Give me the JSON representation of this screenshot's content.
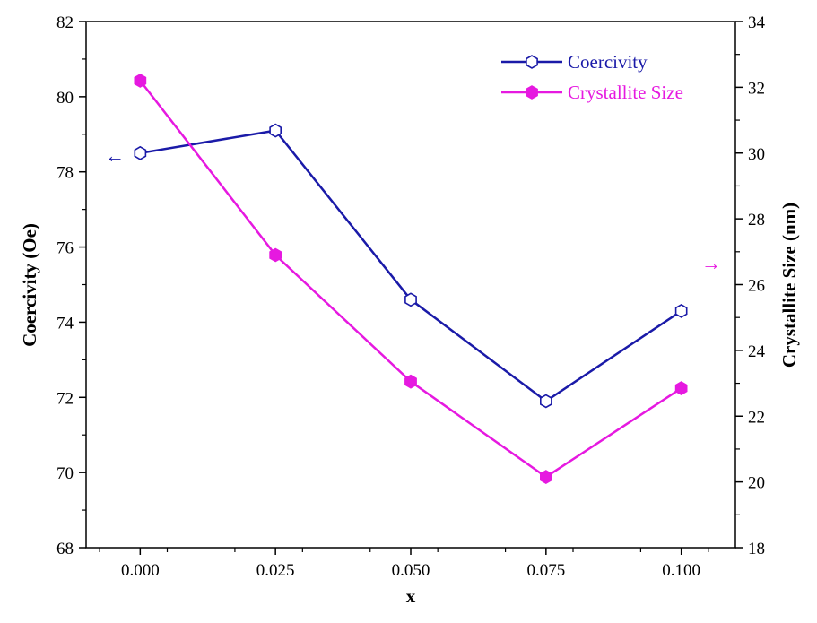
{
  "chart_data": {
    "type": "line",
    "x": [
      0.0,
      0.025,
      0.05,
      0.075,
      0.1
    ],
    "xlabel": "x",
    "xlim": [
      -0.01,
      0.11
    ],
    "x_ticks": [
      "0.000",
      "0.025",
      "0.050",
      "0.075",
      "0.100"
    ],
    "y_left": {
      "label": "Coercivity (Oe)",
      "lim": [
        68,
        82
      ],
      "ticks": [
        "68",
        "70",
        "72",
        "74",
        "76",
        "78",
        "80",
        "82"
      ]
    },
    "y_right": {
      "label": "Crystallite Size (nm)",
      "lim": [
        18,
        34
      ],
      "ticks": [
        "18",
        "20",
        "22",
        "24",
        "26",
        "28",
        "30",
        "32",
        "34"
      ]
    },
    "series": [
      {
        "name": "Coercivity",
        "axis": "left",
        "values": [
          78.5,
          79.1,
          74.6,
          71.9,
          74.3
        ],
        "color": "#1a1aa8",
        "marker": "hexagon-open"
      },
      {
        "name": "Crystallite Size",
        "axis": "right",
        "values": [
          32.2,
          26.9,
          23.05,
          20.15,
          22.85
        ],
        "color": "#e619e0",
        "marker": "hexagon-filled"
      }
    ],
    "legend_position": "top-right",
    "grid": false,
    "annotations": [
      {
        "text": "←",
        "points_to": "left",
        "series": "Coercivity",
        "color": "#1a1aa8"
      },
      {
        "text": "→",
        "points_to": "right",
        "series": "Crystallite Size",
        "color": "#e619e0"
      }
    ]
  }
}
